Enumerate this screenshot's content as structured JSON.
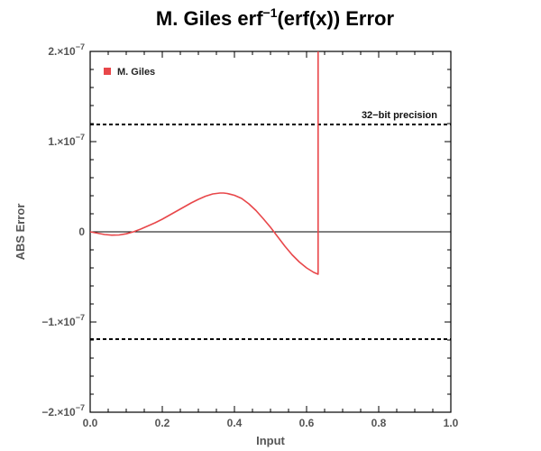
{
  "chart_data": {
    "type": "line",
    "title": {
      "main_prefix": "M. Giles erf",
      "superscript": "−1",
      "main_suffix": "(erf(x)) Error"
    },
    "xlabel": "Input",
    "ylabel": "ABS Error",
    "xlim": [
      0,
      1
    ],
    "ylim": [
      -2e-07,
      2e-07
    ],
    "x_ticks": [
      {
        "value": 0,
        "label": "0.0"
      },
      {
        "value": 0.2,
        "label": "0.2"
      },
      {
        "value": 0.4,
        "label": "0.4"
      },
      {
        "value": 0.6,
        "label": "0.6"
      },
      {
        "value": 0.8,
        "label": "0.8"
      },
      {
        "value": 1.0,
        "label": "1.0"
      }
    ],
    "y_ticks": [
      {
        "value": 2e-07,
        "mantissa": "2.",
        "exponent": "−7"
      },
      {
        "value": 1e-07,
        "mantissa": "1.",
        "exponent": "−7"
      },
      {
        "value": 0,
        "mantissa": "0",
        "exponent": ""
      },
      {
        "value": -1e-07,
        "mantissa": "−1.",
        "exponent": "−7"
      },
      {
        "value": -2e-07,
        "mantissa": "−2.",
        "exponent": "−7"
      }
    ],
    "legend": {
      "position": "top-left",
      "entries": [
        {
          "name": "M. Giles",
          "color": "#e8474a"
        }
      ]
    },
    "grid": false,
    "reference_lines": [
      {
        "y": 1.19e-07,
        "style": "dashed",
        "label": "32−bit precision"
      },
      {
        "y": -1.19e-07,
        "style": "dashed",
        "label": ""
      },
      {
        "y": 0,
        "style": "solid",
        "label": ""
      }
    ],
    "series": [
      {
        "name": "M. Giles",
        "color": "#e8474a",
        "points": [
          [
            0.0,
            0.0
          ],
          [
            0.02,
            -1.5e-09
          ],
          [
            0.04,
            -3e-09
          ],
          [
            0.06,
            -3.7e-09
          ],
          [
            0.08,
            -3.5e-09
          ],
          [
            0.1,
            -2.2e-09
          ],
          [
            0.12,
            0.0
          ],
          [
            0.14,
            3e-09
          ],
          [
            0.16,
            6.5e-09
          ],
          [
            0.18,
            1e-08
          ],
          [
            0.2,
            1.4e-08
          ],
          [
            0.22,
            1.85e-08
          ],
          [
            0.24,
            2.3e-08
          ],
          [
            0.26,
            2.75e-08
          ],
          [
            0.28,
            3.2e-08
          ],
          [
            0.3,
            3.6e-08
          ],
          [
            0.32,
            3.95e-08
          ],
          [
            0.34,
            4.2e-08
          ],
          [
            0.36,
            4.3e-08
          ],
          [
            0.37,
            4.3e-08
          ],
          [
            0.38,
            4.25e-08
          ],
          [
            0.4,
            4.05e-08
          ],
          [
            0.42,
            3.7e-08
          ],
          [
            0.44,
            3.1e-08
          ],
          [
            0.46,
            2.35e-08
          ],
          [
            0.48,
            1.45e-08
          ],
          [
            0.5,
            5e-09
          ],
          [
            0.52,
            -5.5e-09
          ],
          [
            0.54,
            -1.6e-08
          ],
          [
            0.56,
            -2.55e-08
          ],
          [
            0.58,
            -3.35e-08
          ],
          [
            0.6,
            -4e-08
          ],
          [
            0.62,
            -4.5e-08
          ],
          [
            0.632,
            -4.7e-08
          ],
          [
            0.632,
            2e-07
          ]
        ]
      }
    ]
  }
}
